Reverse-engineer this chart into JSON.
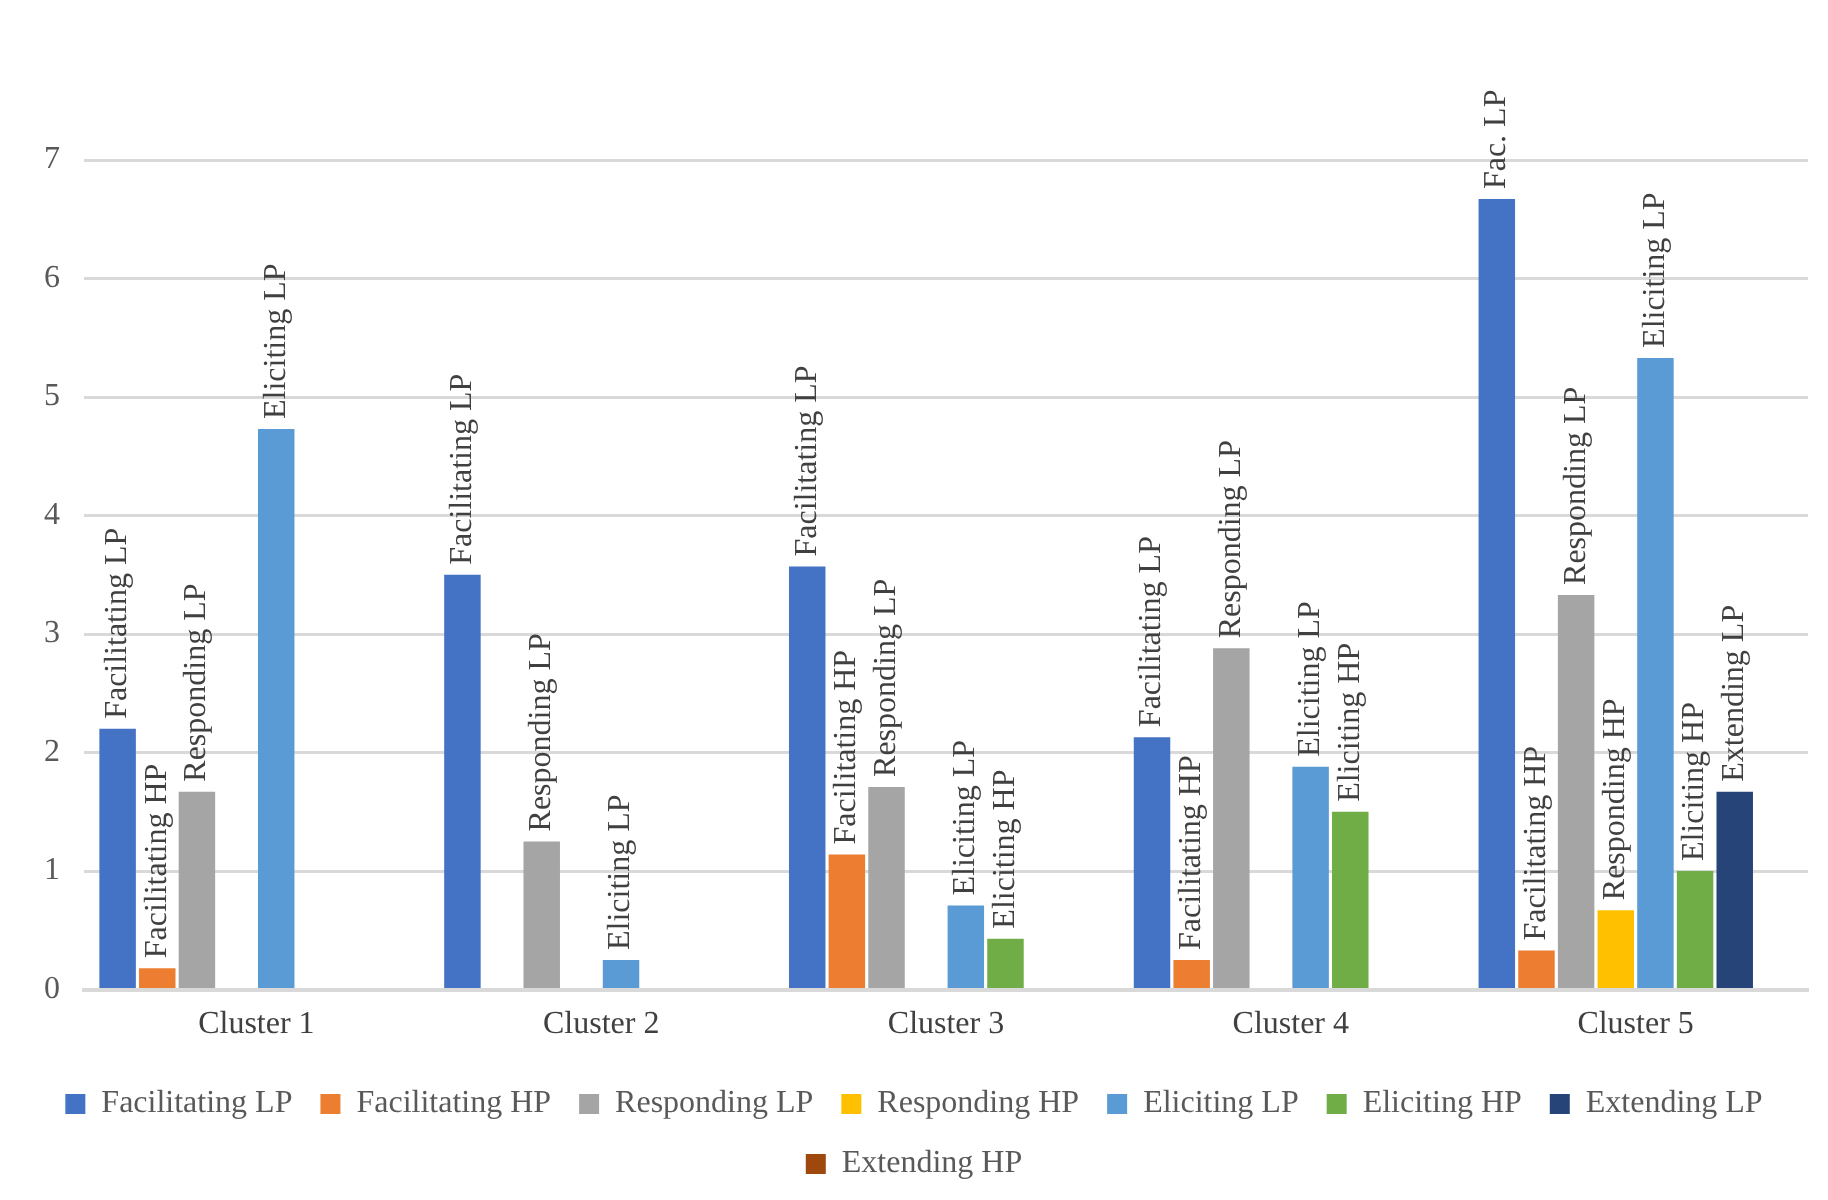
{
  "chart_data": {
    "type": "bar",
    "categories": [
      "Cluster 1",
      "Cluster 2",
      "Cluster 3",
      "Cluster 4",
      "Cluster 5"
    ],
    "series": [
      {
        "name": "Facilitating LP",
        "color": "#4472c4",
        "values": [
          2.2,
          3.5,
          3.57,
          2.13,
          6.67
        ],
        "value_labels": [
          "Facilitating LP",
          "Facilitating LP",
          "Facilitating LP",
          "Facilitating LP",
          "Fac. LP"
        ]
      },
      {
        "name": "Facilitating HP",
        "color": "#ed7d31",
        "values": [
          0.18,
          null,
          1.14,
          0.25,
          0.33
        ],
        "value_labels": [
          "Facilitating HP",
          null,
          "Facilitating HP",
          "Facilitating HP",
          "Facilitating HP"
        ]
      },
      {
        "name": "Responding LP",
        "color": "#a5a5a5",
        "values": [
          1.67,
          1.25,
          1.71,
          2.88,
          3.33
        ],
        "value_labels": [
          "Responding LP",
          "Responding LP",
          "Responding LP",
          "Responding LP",
          "Responding LP"
        ]
      },
      {
        "name": "Responding HP",
        "color": "#ffc000",
        "values": [
          null,
          null,
          null,
          null,
          0.67
        ],
        "value_labels": [
          null,
          null,
          null,
          null,
          "Responding HP"
        ]
      },
      {
        "name": "Eliciting LP",
        "color": "#5b9bd5",
        "values": [
          4.73,
          0.25,
          0.71,
          1.88,
          5.33
        ],
        "value_labels": [
          "Eliciting LP",
          "Eliciting LP",
          "Eliciting LP",
          "Eliciting LP",
          "Eliciting LP"
        ]
      },
      {
        "name": "Eliciting HP",
        "color": "#70ad47",
        "values": [
          null,
          null,
          0.43,
          1.5,
          1.0
        ],
        "value_labels": [
          null,
          null,
          "Eliciting HP",
          "Eliciting HP",
          "Eliciting HP"
        ]
      },
      {
        "name": "Extending LP",
        "color": "#264478",
        "values": [
          null,
          null,
          null,
          null,
          1.67
        ],
        "value_labels": [
          null,
          null,
          null,
          null,
          "Extending LP"
        ]
      },
      {
        "name": "Extending HP",
        "color": "#9e480e",
        "values": [
          null,
          null,
          null,
          null,
          null
        ]
      }
    ],
    "ylim": [
      0,
      7
    ],
    "yticks": [
      0,
      1,
      2,
      3,
      4,
      5,
      6,
      7
    ],
    "grid": "y",
    "legend": "bottom"
  }
}
